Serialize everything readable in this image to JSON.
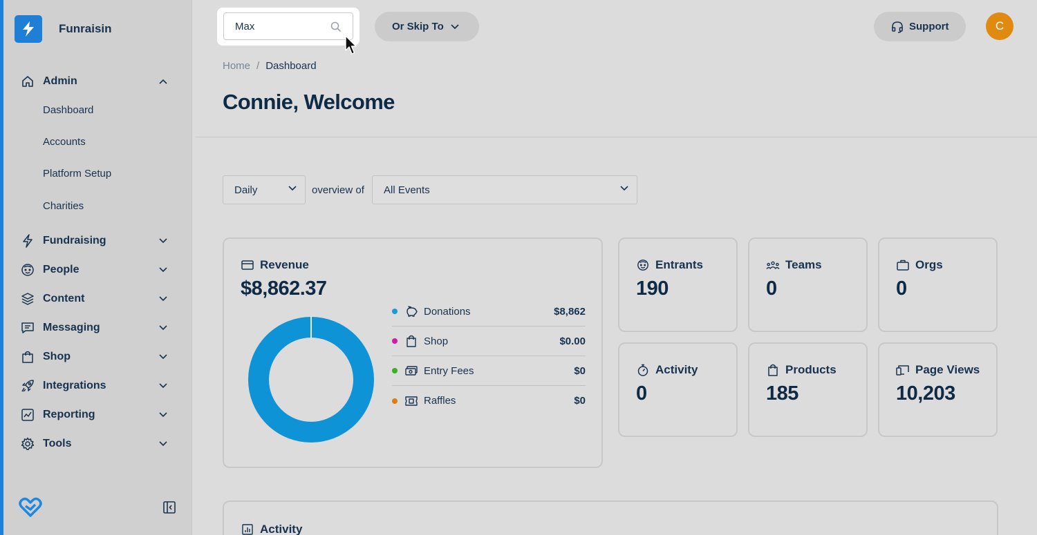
{
  "app": {
    "name": "Funraisin"
  },
  "sidebar": {
    "sections": [
      {
        "label": "Admin",
        "icon": "home-icon",
        "expanded": true
      },
      {
        "label": "Fundraising",
        "icon": "bolt-icon"
      },
      {
        "label": "People",
        "icon": "face-icon"
      },
      {
        "label": "Content",
        "icon": "layers-icon"
      },
      {
        "label": "Messaging",
        "icon": "message-icon"
      },
      {
        "label": "Shop",
        "icon": "shopping-bag-icon"
      },
      {
        "label": "Integrations",
        "icon": "rocket-icon"
      },
      {
        "label": "Reporting",
        "icon": "chart-icon"
      },
      {
        "label": "Tools",
        "icon": "gear-icon"
      }
    ],
    "admin_items": [
      "Dashboard",
      "Accounts",
      "Platform Setup",
      "Charities"
    ]
  },
  "search": {
    "value": "Max"
  },
  "skip": {
    "label": "Or Skip To"
  },
  "support": {
    "label": "Support"
  },
  "user": {
    "initial": "C",
    "avatar_color": "#e08a12"
  },
  "breadcrumb": {
    "home": "Home",
    "separator": "/",
    "current": "Dashboard"
  },
  "page": {
    "title": "Connie, Welcome"
  },
  "filters": {
    "period": "Daily",
    "overview_label": "overview of",
    "event": "All Events"
  },
  "revenue": {
    "title": "Revenue",
    "total": "$8,862.37",
    "breakdown": [
      {
        "label": "Donations",
        "value": "$8,862",
        "color": "#1a9ad6",
        "icon": "piggy-bank-icon"
      },
      {
        "label": "Shop",
        "value": "$0.00",
        "color": "#d21aa8",
        "icon": "shopping-bag-icon"
      },
      {
        "label": "Entry Fees",
        "value": "$0",
        "color": "#36b31e",
        "icon": "cash-icon"
      },
      {
        "label": "Raffles",
        "value": "$0",
        "color": "#e07a12",
        "icon": "ticket-icon"
      }
    ],
    "donut_color": "#0e93d6"
  },
  "stats": [
    {
      "label": "Entrants",
      "value": "190",
      "icon": "face-icon"
    },
    {
      "label": "Teams",
      "value": "0",
      "icon": "team-icon"
    },
    {
      "label": "Orgs",
      "value": "0",
      "icon": "briefcase-icon"
    },
    {
      "label": "Activity",
      "value": "0",
      "icon": "stopwatch-icon"
    },
    {
      "label": "Products",
      "value": "185",
      "icon": "shopping-bag-icon"
    },
    {
      "label": "Page Views",
      "value": "10,203",
      "icon": "devices-icon"
    }
  ],
  "activity_panel": {
    "title": "Activity",
    "icon": "bar-chart-icon"
  }
}
